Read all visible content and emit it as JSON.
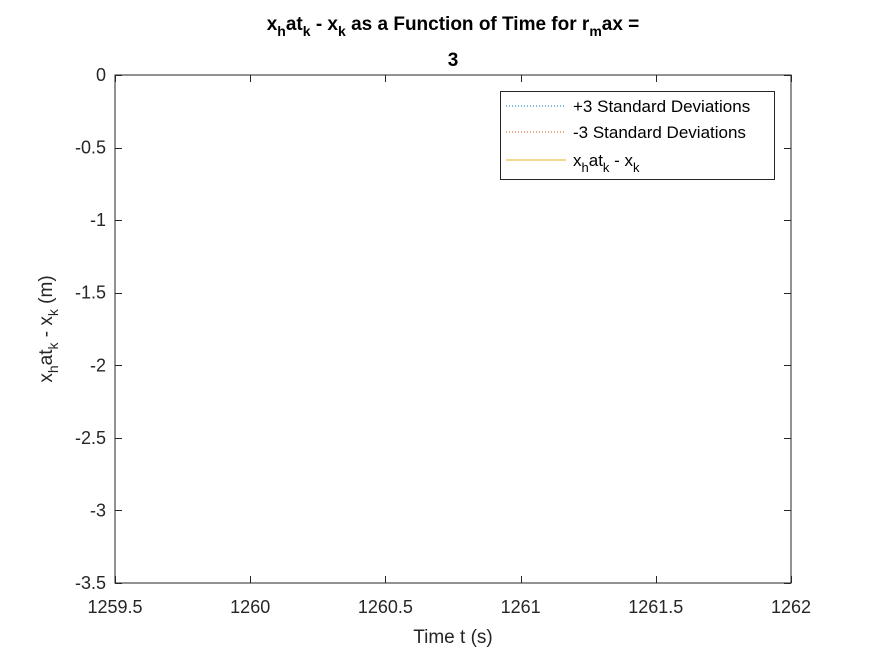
{
  "chart_data": {
    "type": "line",
    "title": {
      "line1": [
        {
          "text": "x"
        },
        {
          "text": "h",
          "sub": true
        },
        {
          "text": "at"
        },
        {
          "text": "k",
          "sub": true
        },
        {
          "text": " - x"
        },
        {
          "text": "k",
          "sub": true
        },
        {
          "text": " as a Function of Time for r"
        },
        {
          "text": "m",
          "sub": true
        },
        {
          "text": "ax ="
        }
      ],
      "line2": "3"
    },
    "xlabel": "Time t (s)",
    "ylabel": [
      {
        "text": "x"
      },
      {
        "text": "h",
        "sub": true
      },
      {
        "text": "at"
      },
      {
        "text": "k",
        "sub": true
      },
      {
        "text": " - x"
      },
      {
        "text": "k",
        "sub": true
      },
      {
        "text": " (m)"
      }
    ],
    "xlim": [
      1259.5,
      1262
    ],
    "ylim": [
      -3.5,
      0
    ],
    "xticks": [
      1259.5,
      1260,
      1260.5,
      1261,
      1261.5,
      1262
    ],
    "xtick_labels": [
      "1259.5",
      "1260",
      "1260.5",
      "1261",
      "1261.5",
      "1262"
    ],
    "yticks": [
      0,
      -0.5,
      -1,
      -1.5,
      -2,
      -2.5,
      -3,
      -3.5
    ],
    "ytick_labels": [
      "0",
      "-0.5",
      "-1",
      "-1.5",
      "-2",
      "-2.5",
      "-3",
      "-3.5"
    ],
    "grid": false,
    "legend_position": "top-right",
    "series": [
      {
        "name": "+3 Standard Deviations",
        "label": [
          {
            "text": "+3 Standard Deviations"
          }
        ],
        "color": "#0072BD",
        "style": "dotted",
        "x": [],
        "y": []
      },
      {
        "name": "-3 Standard Deviations",
        "label": [
          {
            "text": "-3 Standard Deviations"
          }
        ],
        "color": "#D95319",
        "style": "dotted",
        "x": [],
        "y": []
      },
      {
        "name": "x_hat_k - x_k",
        "label": [
          {
            "text": "x"
          },
          {
            "text": "h",
            "sub": true
          },
          {
            "text": "at"
          },
          {
            "text": "k",
            "sub": true
          },
          {
            "text": " - x"
          },
          {
            "text": "k",
            "sub": true
          }
        ],
        "color": "#EDB120",
        "style": "solid",
        "x": [],
        "y": []
      }
    ]
  }
}
